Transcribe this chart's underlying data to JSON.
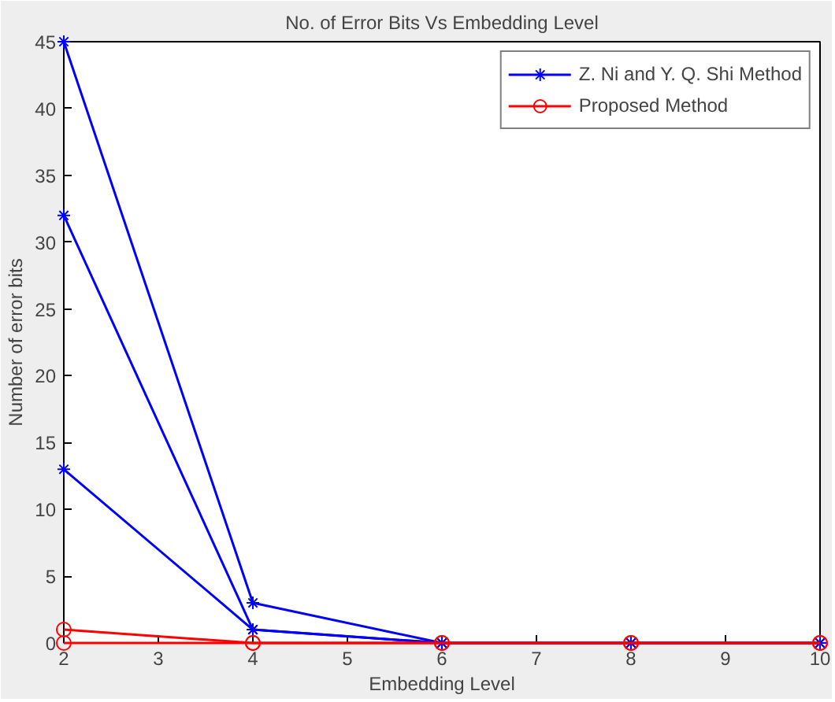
{
  "chart_data": {
    "type": "line",
    "title": "No. of Error Bits Vs Embedding Level",
    "xlabel": "Embedding Level",
    "ylabel": "Number of error bits",
    "x": [
      2,
      4,
      6,
      8,
      10
    ],
    "series": [
      {
        "name": "Z. Ni and Y. Q. Shi Method",
        "color": "#0000ff",
        "marker": "cross",
        "values": [
          45,
          3,
          0,
          0,
          0
        ]
      },
      {
        "color": "#0000ff",
        "marker": "cross",
        "values": [
          32,
          1,
          0,
          0,
          0
        ]
      },
      {
        "color": "#0000ff",
        "marker": "cross",
        "values": [
          13,
          1,
          0,
          0,
          0
        ]
      },
      {
        "color": "#ff0000",
        "marker": "circle",
        "values": [
          0,
          0,
          0,
          0,
          0
        ]
      },
      {
        "name": "Proposed Method",
        "color": "#ff0000",
        "marker": "circle",
        "values": [
          1,
          0,
          0,
          0,
          0
        ]
      }
    ],
    "xlim": [
      2,
      10
    ],
    "ylim": [
      0,
      45
    ],
    "xticks": [
      2,
      3,
      4,
      5,
      6,
      7,
      8,
      9,
      10
    ],
    "yticks": [
      0,
      5,
      10,
      15,
      20,
      25,
      30,
      35,
      40,
      45
    ],
    "grid": false,
    "legend": "top right",
    "line_style": "solid"
  }
}
